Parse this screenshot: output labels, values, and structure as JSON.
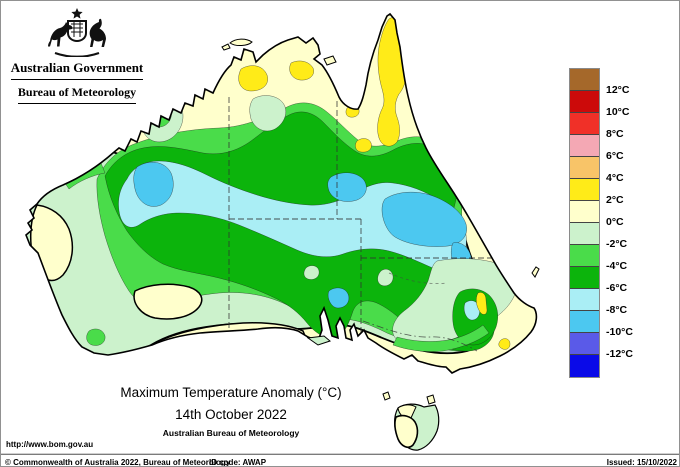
{
  "header": {
    "government": "Australian Government",
    "bureau": "Bureau of Meteorology"
  },
  "map": {
    "title": "Maximum Temperature Anomaly (°C)",
    "date": "14th October 2022",
    "organisation": "Australian Bureau of Meteorology",
    "url": "http://www.bom.gov.au",
    "region": "Australia"
  },
  "legend": {
    "unit": "°C",
    "colors": [
      "#A5682A",
      "#CC0A0A",
      "#F03028",
      "#F4A8B4",
      "#F8C468",
      "#FFEB18",
      "#FFFFCC",
      "#CCF2CC",
      "#4ADC4A",
      "#0CB40C",
      "#AAEEF5",
      "#4CC8F0",
      "#5A5AE8",
      "#0A0AE8"
    ],
    "labels": [
      "12°C",
      "10°C",
      "8°C",
      "6°C",
      "4°C",
      "2°C",
      "0°C",
      "-2°C",
      "-4°C",
      "-6°C",
      "-8°C",
      "-10°C",
      "-12°C"
    ]
  },
  "palette": {
    "cream": "#FFFFCC",
    "paleGreen": "#CCF2CC",
    "medGreen": "#4ADC4A",
    "darkGreen": "#0CB40C",
    "paleCyan": "#AAEEF5",
    "cyan": "#4CC8F0",
    "yellow": "#FFEB18",
    "coast": "#000000"
  },
  "footer": {
    "copyright": "© Commonwealth of Australia 2022, Bureau of Meteorology",
    "id_code": "ID code: AWAP",
    "issued": "Issued: 15/10/2022"
  }
}
